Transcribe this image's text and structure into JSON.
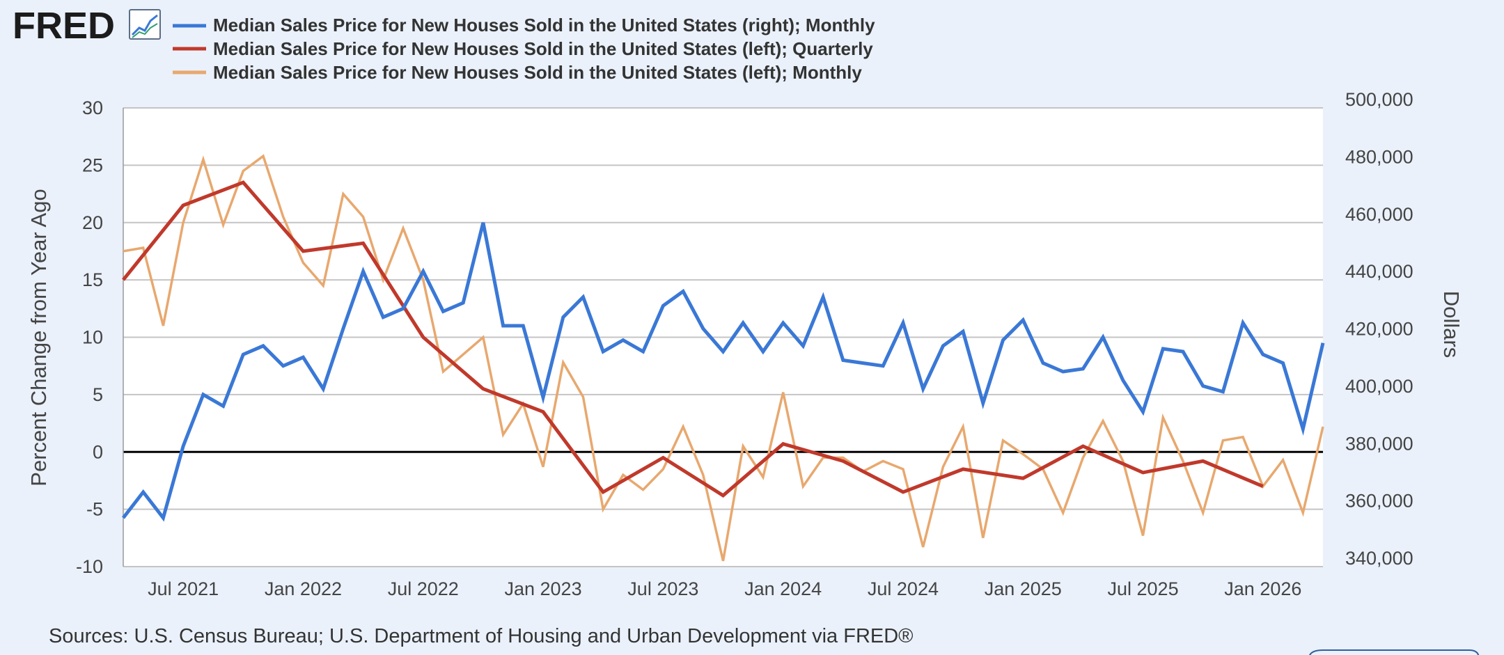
{
  "logo": {
    "text": "FRED",
    "icon": "chart-line-icon"
  },
  "legend": [
    {
      "label": "Median Sales Price for New Houses Sold in the United States (right); Monthly",
      "color": "#3a78d6"
    },
    {
      "label": "Median Sales Price for New Houses Sold in the United States (left); Quarterly",
      "color": "#c0392b"
    },
    {
      "label": "Median Sales Price for New Houses Sold in the United States (left); Monthly",
      "color": "#e8a86e"
    }
  ],
  "source": "Sources: U.S. Census Bureau; U.S. Department of Housing and Urban Development via FRED®",
  "chart_data": {
    "type": "line",
    "left_axis": {
      "title": "Percent Change from Year Ago",
      "range": [
        -10,
        30
      ],
      "ticks": [
        "30",
        "25",
        "20",
        "15",
        "10",
        "5",
        "0",
        "-5",
        "-10"
      ],
      "zero_line": true
    },
    "right_axis": {
      "title": "Dollars",
      "range": [
        340000,
        500000
      ],
      "ticks": [
        "500,000",
        "480,000",
        "460,000",
        "440,000",
        "420,000",
        "400,000",
        "380,000",
        "360,000",
        "340,000"
      ]
    },
    "x_axis": {
      "range": [
        "2021-04",
        "2026-04"
      ],
      "tick_labels": [
        {
          "month": "2021-07",
          "label": "Jul 2021"
        },
        {
          "month": "2022-01",
          "label": "Jan 2022"
        },
        {
          "month": "2022-07",
          "label": "Jul 2022"
        },
        {
          "month": "2023-01",
          "label": "Jan 2023"
        },
        {
          "month": "2023-07",
          "label": "Jul 2023"
        },
        {
          "month": "2024-01",
          "label": "Jan 2024"
        },
        {
          "month": "2024-07",
          "label": "Jul 2024"
        },
        {
          "month": "2025-01",
          "label": "Jan 2025"
        },
        {
          "month": "2025-07",
          "label": "Jul 2025"
        },
        {
          "month": "2026-01",
          "label": "Jan 2026"
        }
      ]
    },
    "grid": true,
    "series": [
      {
        "name": "Median Sales Price for New Houses Sold in the United States (right); Monthly",
        "axis": "right",
        "color": "#3a78d6",
        "x": [
          "2021-04",
          "2021-05",
          "2021-06",
          "2021-07",
          "2021-08",
          "2021-09",
          "2021-10",
          "2021-11",
          "2021-12",
          "2022-01",
          "2022-02",
          "2022-03",
          "2022-04",
          "2022-05",
          "2022-06",
          "2022-07",
          "2022-08",
          "2022-09",
          "2022-10",
          "2022-11",
          "2022-12",
          "2023-01",
          "2023-02",
          "2023-03",
          "2023-04",
          "2023-05",
          "2023-06",
          "2023-07",
          "2023-08",
          "2023-09",
          "2023-10",
          "2023-11",
          "2023-12",
          "2024-01",
          "2024-02",
          "2024-03",
          "2024-04",
          "2024-05",
          "2024-06",
          "2024-07",
          "2024-08",
          "2024-09",
          "2024-10",
          "2024-11",
          "2024-12",
          "2025-01",
          "2025-02",
          "2025-03",
          "2025-04",
          "2025-05",
          "2025-06",
          "2025-07",
          "2025-08",
          "2025-09",
          "2025-10",
          "2025-11",
          "2025-12",
          "2026-01",
          "2026-02",
          "2026-03",
          "2026-04"
        ],
        "values": [
          357000,
          366000,
          357000,
          382000,
          400000,
          396000,
          414000,
          417000,
          410000,
          413000,
          402000,
          423000,
          443000,
          427000,
          430000,
          443000,
          429000,
          432000,
          460000,
          424000,
          424000,
          399000,
          427000,
          434000,
          415000,
          419000,
          415000,
          431000,
          436000,
          423000,
          415000,
          425000,
          415000,
          425000,
          417000,
          434000,
          412000,
          411000,
          410000,
          425000,
          402000,
          417000,
          422000,
          397000,
          419000,
          426000,
          411000,
          408000,
          409000,
          420000,
          405000,
          394000,
          416000,
          415000,
          403000,
          401000,
          425000,
          414000,
          411000,
          388000,
          418000
        ]
      },
      {
        "name": "Median Sales Price for New Houses Sold in the United States (left); Quarterly",
        "axis": "left",
        "color": "#c0392b",
        "x": [
          "2021-04",
          "2021-07",
          "2021-10",
          "2022-01",
          "2022-04",
          "2022-07",
          "2022-10",
          "2023-01",
          "2023-04",
          "2023-07",
          "2023-10",
          "2024-01",
          "2024-04",
          "2024-07",
          "2024-10",
          "2025-01",
          "2025-04",
          "2025-07",
          "2025-10",
          "2026-01"
        ],
        "values": [
          15.0,
          21.5,
          23.5,
          17.5,
          18.2,
          10.0,
          5.5,
          3.5,
          -3.5,
          -0.5,
          -3.8,
          0.7,
          -0.8,
          -3.5,
          -1.5,
          -2.3,
          0.5,
          -1.8,
          -0.8,
          -3.0
        ]
      },
      {
        "name": "Median Sales Price for New Houses Sold in the United States (left); Monthly",
        "axis": "left",
        "color": "#e8a86e",
        "x": [
          "2021-04",
          "2021-05",
          "2021-06",
          "2021-07",
          "2021-08",
          "2021-09",
          "2021-10",
          "2021-11",
          "2021-12",
          "2022-01",
          "2022-02",
          "2022-03",
          "2022-04",
          "2022-05",
          "2022-06",
          "2022-07",
          "2022-08",
          "2022-09",
          "2022-10",
          "2022-11",
          "2022-12",
          "2023-01",
          "2023-02",
          "2023-03",
          "2023-04",
          "2023-05",
          "2023-06",
          "2023-07",
          "2023-08",
          "2023-09",
          "2023-10",
          "2023-11",
          "2023-12",
          "2024-01",
          "2024-02",
          "2024-03",
          "2024-04",
          "2024-05",
          "2024-06",
          "2024-07",
          "2024-08",
          "2024-09",
          "2024-10",
          "2024-11",
          "2024-12",
          "2025-01",
          "2025-02",
          "2025-03",
          "2025-04",
          "2025-05",
          "2025-06",
          "2025-07",
          "2025-08",
          "2025-09",
          "2025-10",
          "2025-11",
          "2025-12",
          "2026-01",
          "2026-02",
          "2026-03",
          "2026-04"
        ],
        "values": [
          17.5,
          17.8,
          11.0,
          20.0,
          25.5,
          19.8,
          24.5,
          25.8,
          20.5,
          16.5,
          14.5,
          22.5,
          20.5,
          15.0,
          19.5,
          15.0,
          7.0,
          8.5,
          10.0,
          1.5,
          4.2,
          -1.3,
          7.8,
          4.8,
          -5.0,
          -2.0,
          -3.3,
          -1.5,
          2.2,
          -2.0,
          -9.5,
          0.5,
          -2.2,
          5.2,
          -3.0,
          -0.5,
          -0.5,
          -1.7,
          -0.8,
          -1.5,
          -8.3,
          -1.3,
          2.2,
          -7.5,
          1.0,
          -0.2,
          -1.5,
          -5.3,
          -0.5,
          2.7,
          -0.8,
          -7.3,
          3.0,
          -0.8,
          -5.3,
          1.0,
          1.3,
          -3.0,
          -0.7,
          -5.3,
          2.2
        ]
      }
    ]
  }
}
